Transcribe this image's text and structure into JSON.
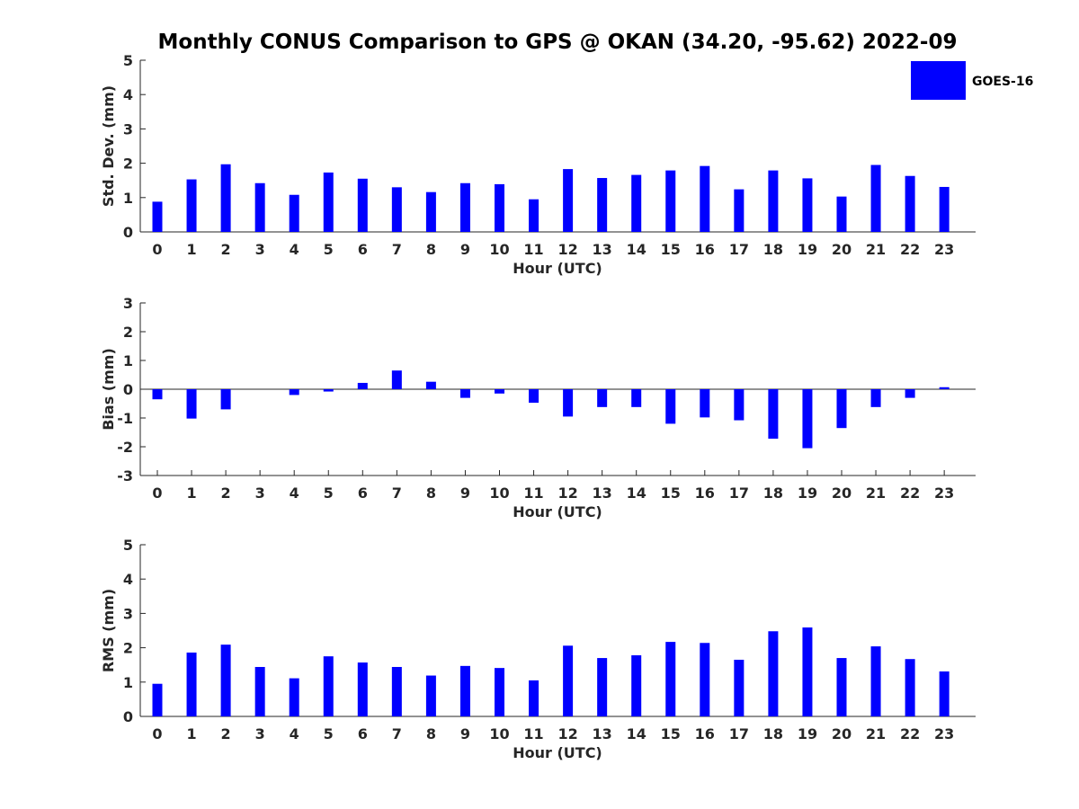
{
  "title": "Monthly CONUS Comparison to GPS @ OKAN (34.20, -95.62) 2022-09",
  "colors": {
    "bar": "#0000ff",
    "axis": "#262626"
  },
  "legend": {
    "label": "GOES-16",
    "position": "top-right"
  },
  "chart_data": [
    {
      "name": "std-dev",
      "type": "bar",
      "xlabel": "Hour (UTC)",
      "ylabel": "Std. Dev. (mm)",
      "ylim": [
        0,
        5
      ],
      "yticks": [
        0,
        1,
        2,
        3,
        4,
        5
      ],
      "categories": [
        "0",
        "1",
        "2",
        "3",
        "4",
        "5",
        "6",
        "7",
        "8",
        "9",
        "10",
        "11",
        "12",
        "13",
        "14",
        "15",
        "16",
        "17",
        "18",
        "19",
        "20",
        "21",
        "22",
        "23"
      ],
      "series": [
        {
          "name": "GOES-16",
          "values": [
            0.88,
            1.53,
            1.97,
            1.42,
            1.08,
            1.73,
            1.55,
            1.3,
            1.16,
            1.42,
            1.39,
            0.95,
            1.83,
            1.57,
            1.66,
            1.79,
            1.92,
            1.24,
            1.79,
            1.56,
            1.03,
            1.95,
            1.63,
            1.31
          ]
        }
      ]
    },
    {
      "name": "bias",
      "type": "bar",
      "xlabel": "Hour (UTC)",
      "ylabel": "Bias (mm)",
      "ylim": [
        -3,
        3
      ],
      "yticks": [
        -3,
        -2,
        -1,
        0,
        1,
        2,
        3
      ],
      "categories": [
        "0",
        "1",
        "2",
        "3",
        "4",
        "5",
        "6",
        "7",
        "8",
        "9",
        "10",
        "11",
        "12",
        "13",
        "14",
        "15",
        "16",
        "17",
        "18",
        "19",
        "20",
        "21",
        "22",
        "23"
      ],
      "series": [
        {
          "name": "GOES-16",
          "values": [
            -0.35,
            -1.02,
            -0.7,
            0.0,
            -0.2,
            -0.08,
            0.22,
            0.65,
            0.26,
            -0.3,
            -0.15,
            -0.47,
            -0.95,
            -0.62,
            -0.62,
            -1.2,
            -0.98,
            -1.08,
            -1.72,
            -2.05,
            -1.35,
            -0.62,
            -0.3,
            0.07
          ]
        }
      ]
    },
    {
      "name": "rms",
      "type": "bar",
      "xlabel": "Hour (UTC)",
      "ylabel": "RMS (mm)",
      "ylim": [
        0,
        5
      ],
      "yticks": [
        0,
        1,
        2,
        3,
        4,
        5
      ],
      "categories": [
        "0",
        "1",
        "2",
        "3",
        "4",
        "5",
        "6",
        "7",
        "8",
        "9",
        "10",
        "11",
        "12",
        "13",
        "14",
        "15",
        "16",
        "17",
        "18",
        "19",
        "20",
        "21",
        "22",
        "23"
      ],
      "series": [
        {
          "name": "GOES-16",
          "values": [
            0.95,
            1.86,
            2.09,
            1.44,
            1.11,
            1.75,
            1.57,
            1.44,
            1.19,
            1.47,
            1.41,
            1.05,
            2.06,
            1.7,
            1.78,
            2.17,
            2.14,
            1.65,
            2.48,
            2.59,
            1.7,
            2.04,
            1.67,
            1.31
          ]
        }
      ]
    }
  ]
}
